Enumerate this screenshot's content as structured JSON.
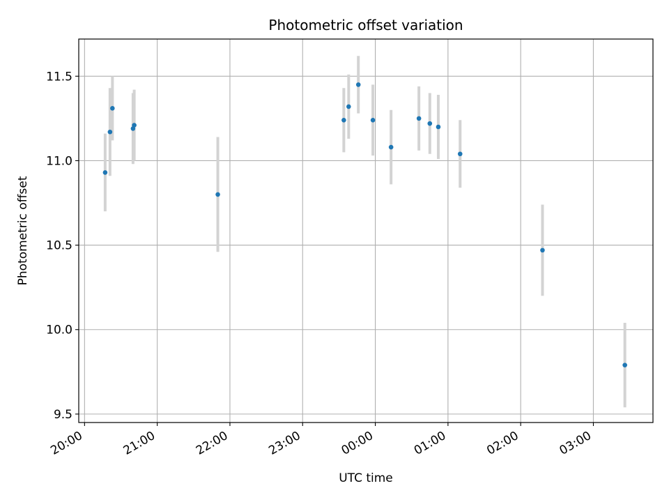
{
  "chart_data": {
    "type": "scatter",
    "title": "Photometric offset variation",
    "xlabel": "UTC time",
    "ylabel": "Photometric offset",
    "x_ticks": [
      "20:00",
      "21:00",
      "22:00",
      "23:00",
      "00:00",
      "01:00",
      "02:00",
      "03:00"
    ],
    "x_tick_hours": [
      0,
      1,
      2,
      3,
      4,
      5,
      6,
      7
    ],
    "x_start_label": "20:00",
    "y_ticks": [
      9.5,
      10.0,
      10.5,
      11.0,
      11.5
    ],
    "y_tick_labels": [
      "9.5",
      "10.0",
      "10.5",
      "11.0",
      "11.5"
    ],
    "xlim_hours": [
      -0.08,
      7.82
    ],
    "ylim": [
      9.45,
      11.72
    ],
    "grid": true,
    "colors": {
      "point": "#1f77b4",
      "errorbar": "#d3d3d3",
      "grid": "#b0b0b0"
    },
    "points": [
      {
        "x": "20:17",
        "y": 10.93,
        "err": 0.23
      },
      {
        "x": "20:21",
        "y": 11.17,
        "err": 0.26
      },
      {
        "x": "20:23",
        "y": 11.31,
        "err": 0.19
      },
      {
        "x": "20:40",
        "y": 11.19,
        "err": 0.21
      },
      {
        "x": "20:41",
        "y": 11.21,
        "err": 0.21
      },
      {
        "x": "21:50",
        "y": 10.8,
        "err": 0.34
      },
      {
        "x": "23:34",
        "y": 11.24,
        "err": 0.19
      },
      {
        "x": "23:38",
        "y": 11.32,
        "err": 0.19
      },
      {
        "x": "23:46",
        "y": 11.45,
        "err": 0.17
      },
      {
        "x": "23:58",
        "y": 11.24,
        "err": 0.21
      },
      {
        "x": "00:13",
        "y": 11.08,
        "err": 0.22
      },
      {
        "x": "00:36",
        "y": 11.25,
        "err": 0.19
      },
      {
        "x": "00:45",
        "y": 11.22,
        "err": 0.18
      },
      {
        "x": "00:52",
        "y": 11.2,
        "err": 0.19
      },
      {
        "x": "01:10",
        "y": 11.04,
        "err": 0.2
      },
      {
        "x": "02:18",
        "y": 10.47,
        "err": 0.27
      },
      {
        "x": "03:26",
        "y": 9.79,
        "err": 0.25
      }
    ]
  }
}
